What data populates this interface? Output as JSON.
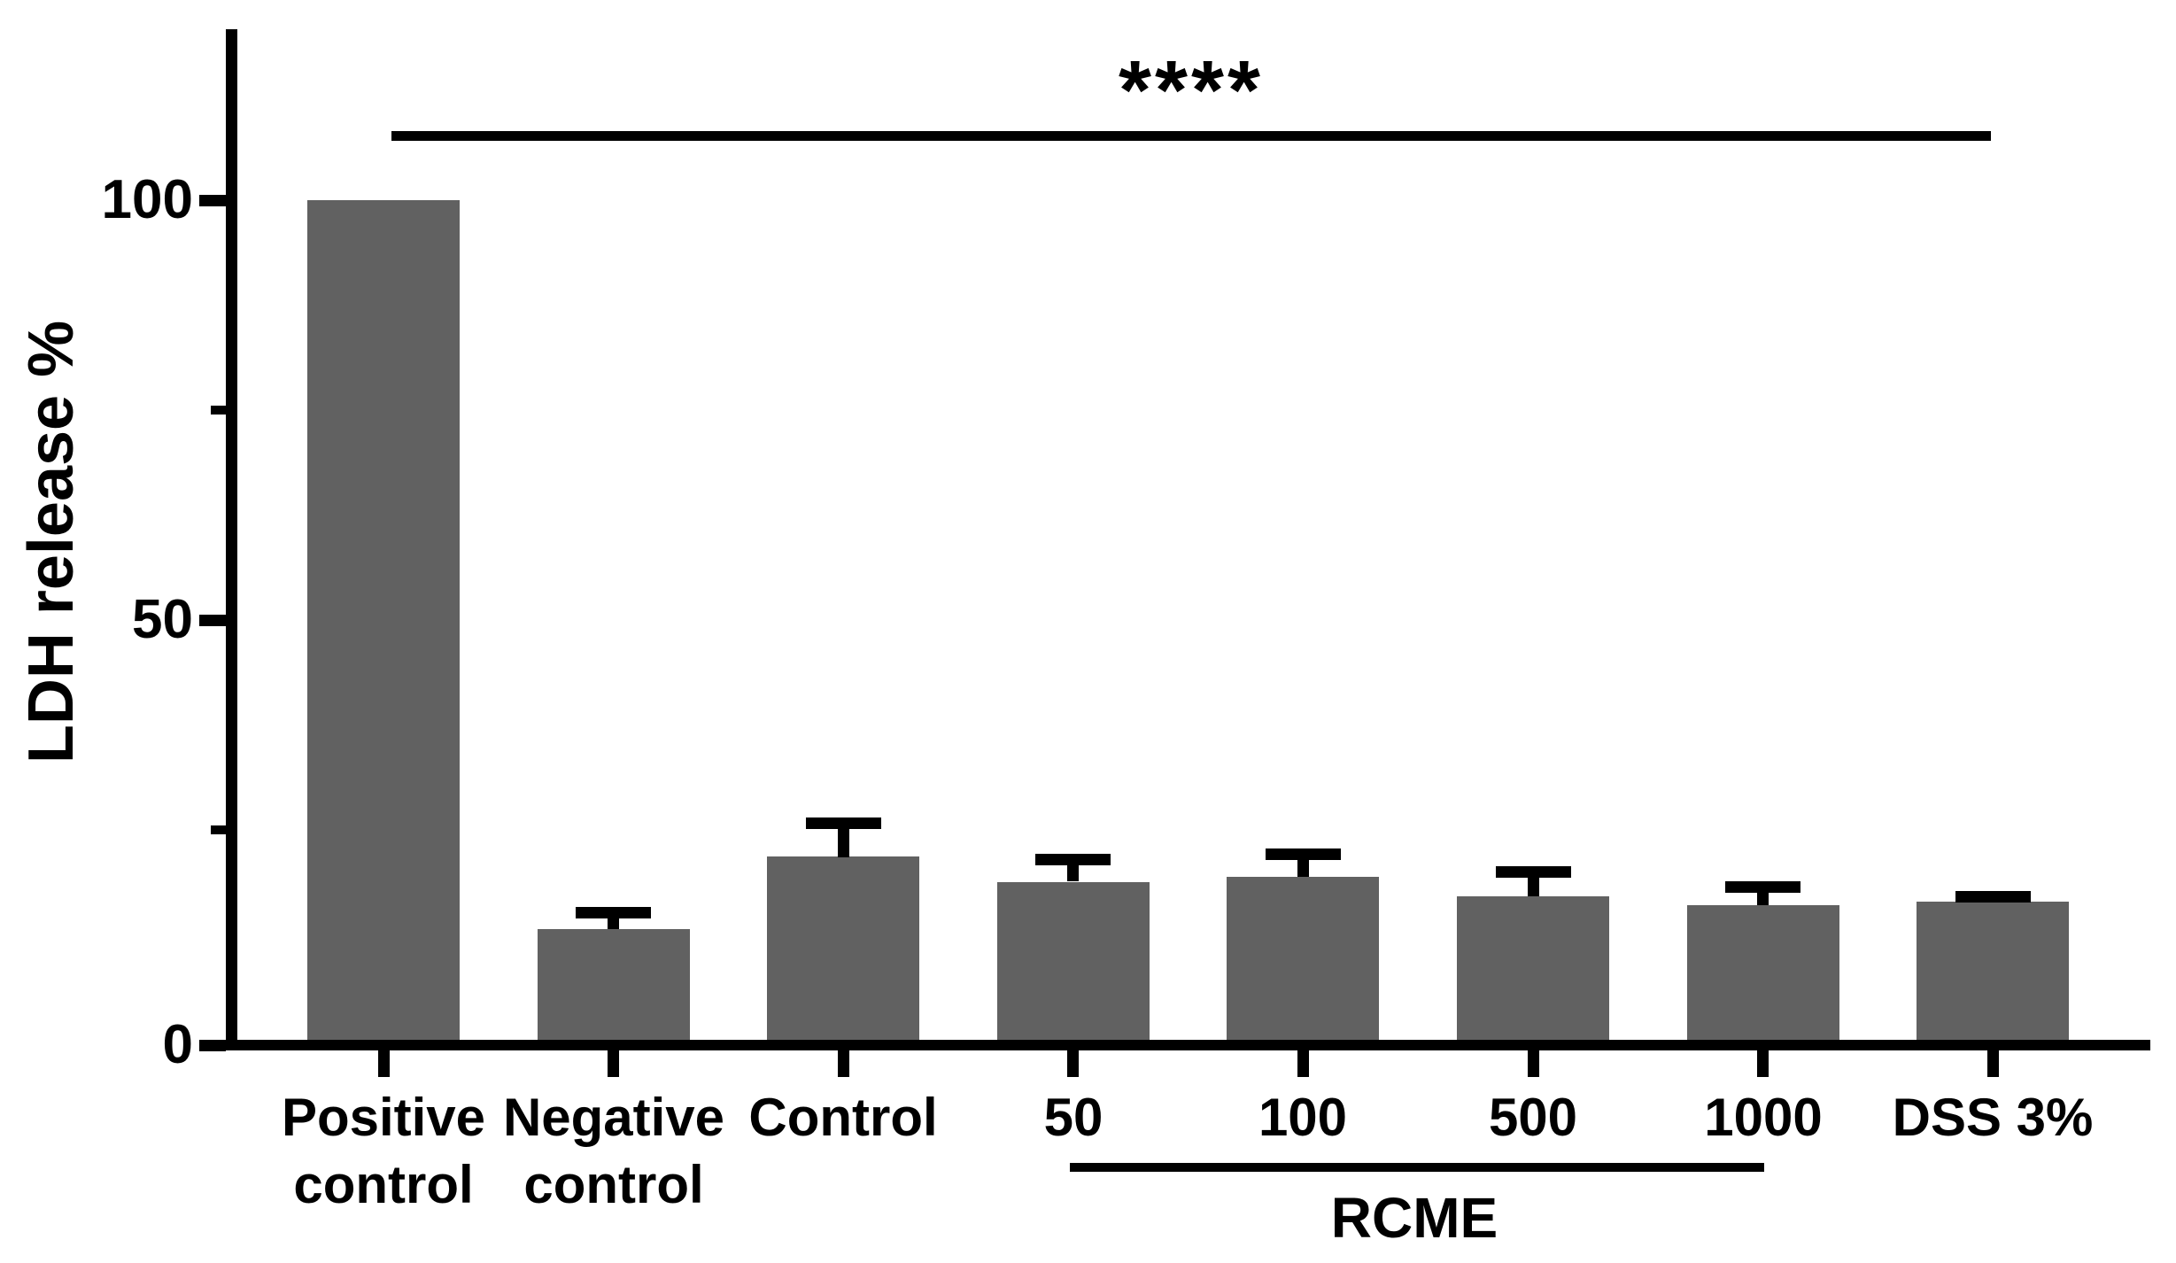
{
  "figure": {
    "background": "#ffffff"
  },
  "chart_data": {
    "type": "bar",
    "title": "",
    "xlabel": "",
    "ylabel": "LDH release %",
    "categories": [
      "Positive control",
      "Negative control",
      "Control",
      "50",
      "100",
      "500",
      "1000",
      "DSS 3%"
    ],
    "tick_labels": [
      "Positive\ncontrol",
      "Negative\ncontrol",
      "Control",
      "50",
      "100",
      "500",
      "1000",
      "DSS 3%"
    ],
    "values": [
      100,
      13.2,
      21.8,
      18.8,
      19.4,
      17.1,
      16,
      16.5
    ],
    "errors_plus": [
      0,
      2.6,
      4.7,
      3.3,
      3.4,
      3.6,
      2.9,
      1.2
    ],
    "error_type": "upper-only",
    "ylim": [
      0,
      120
    ],
    "yticks_major": [
      0,
      50,
      100
    ],
    "yticks_minor": [
      25,
      75
    ],
    "grid": false,
    "legend": "none",
    "bar_color": "#616161",
    "axis_color": "#000000",
    "annotations": {
      "significance": {
        "label": "****",
        "from_category": "Positive control",
        "to_category": "DSS 3%"
      },
      "group": {
        "label": "RCME",
        "from_category": "50",
        "to_category": "1000"
      }
    }
  }
}
